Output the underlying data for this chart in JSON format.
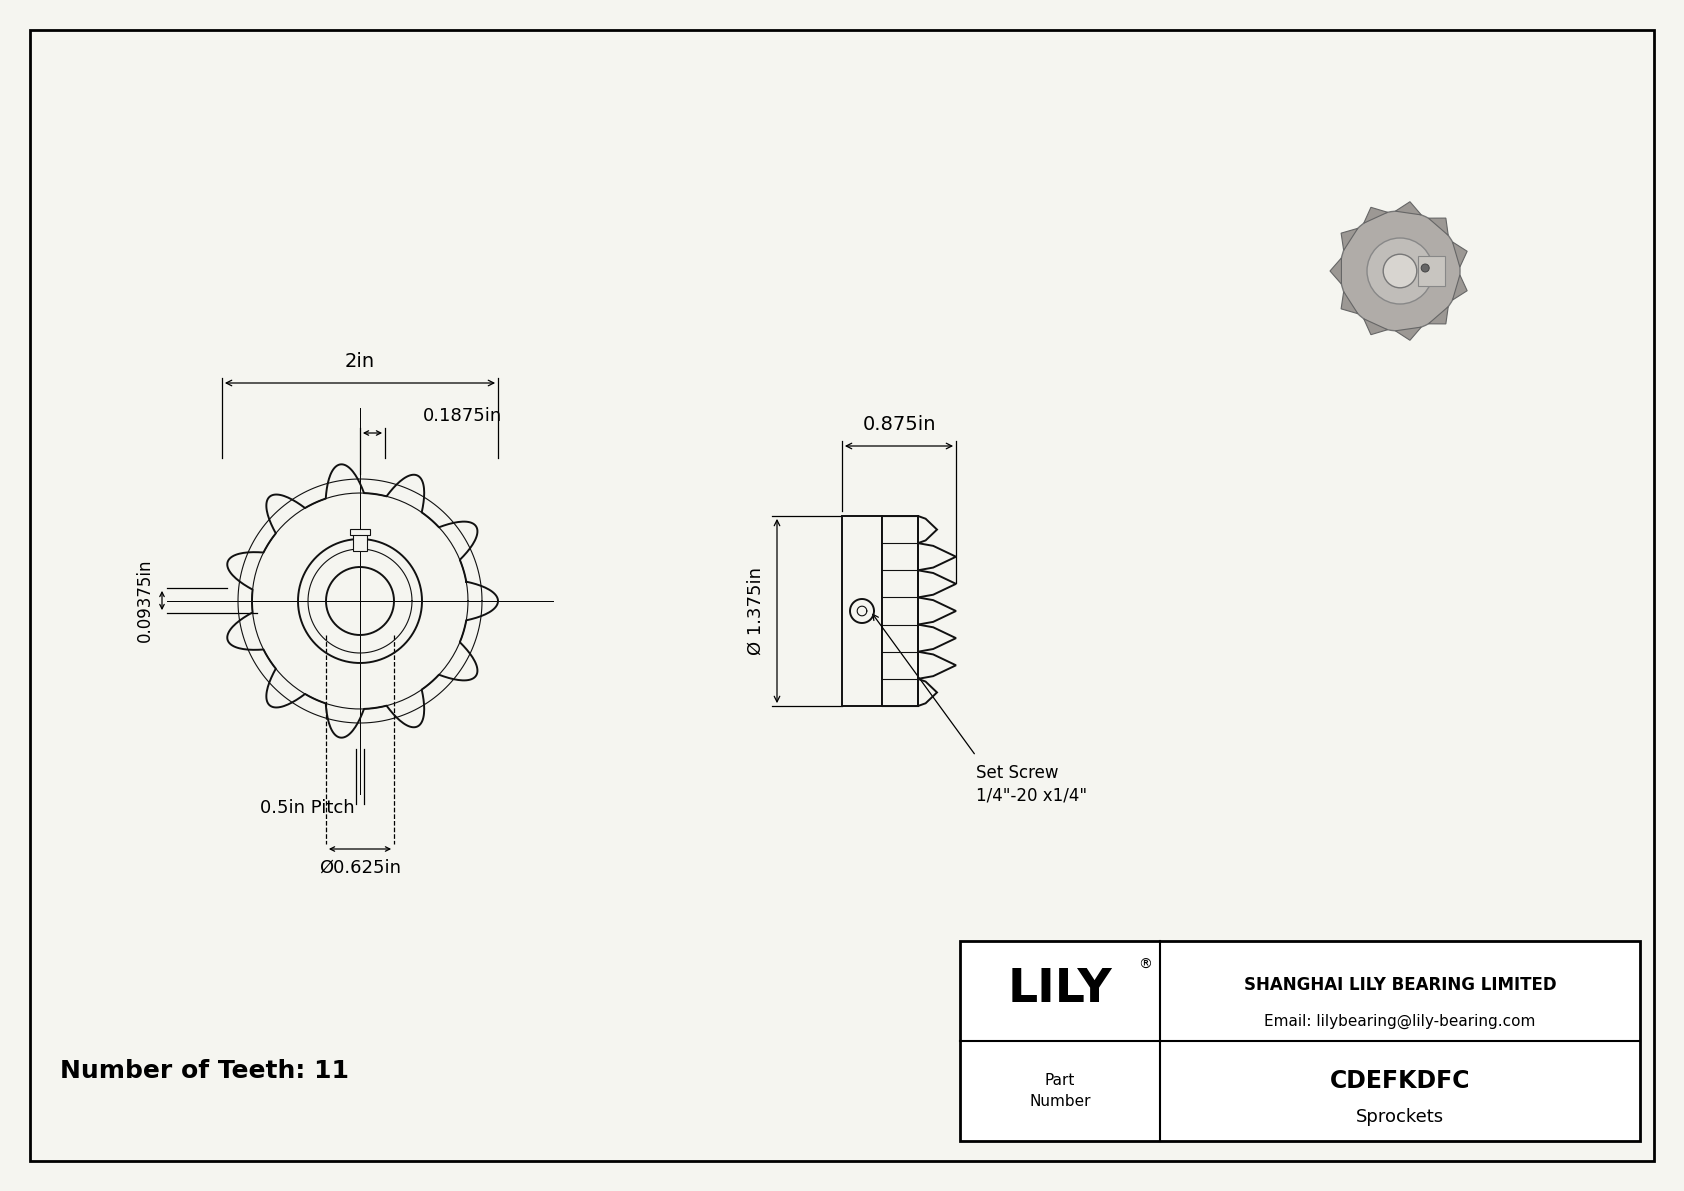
{
  "bg_color": "#f5f5f0",
  "line_color": "#111111",
  "dim_color": "#111111",
  "company": "SHANGHAI LILY BEARING LIMITED",
  "email": "Email: lilybearing@lily-bearing.com",
  "part_number": "CDEFKDFC",
  "part_type": "Sprockets",
  "num_teeth": "Number of Teeth: 11",
  "dim_2in": "2in",
  "dim_0875": "0.875in",
  "dim_01875": "0.1875in",
  "dim_009375": "0.09375in",
  "dim_1375": "Ø 1.375in",
  "dim_05pitch": "0.5in Pitch",
  "dim_0625": "Ø0.625in",
  "set_screw_line1": "1/4\"-20 x1/4\"",
  "set_screw_line2": "Set Screw"
}
